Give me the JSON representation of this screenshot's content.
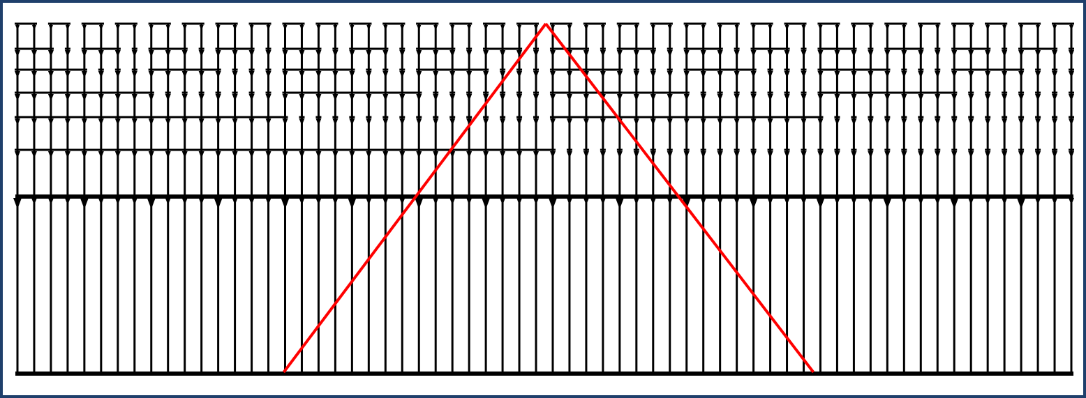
{
  "diagram": {
    "type": "dependency-lattice",
    "columns": 64,
    "levels": 6,
    "colors": {
      "frame": "#1f3f6b",
      "lines": "#000000",
      "highlight": "#ff0000",
      "background": "#ffffff"
    },
    "highlight": {
      "shape": "triangle",
      "apex_column": 32,
      "base_from_column": 16,
      "base_to_column": 48
    }
  }
}
